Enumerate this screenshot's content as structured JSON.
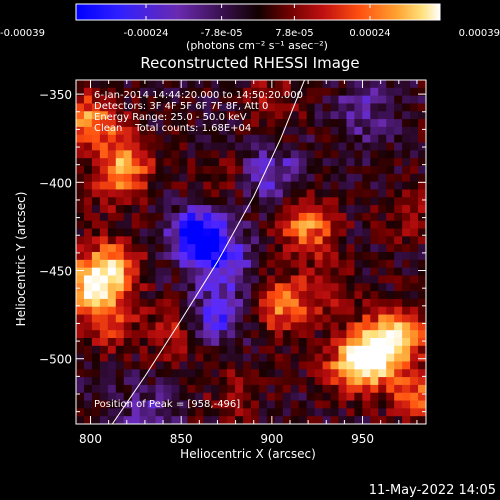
{
  "colorbar": {
    "ticks": [
      "-0.00039",
      "-0.00024",
      "-7.8e-05",
      "7.8e-05",
      "0.00024",
      "0.00039"
    ],
    "unit_label": "(photons cm⁻² s⁻¹ asec⁻²)"
  },
  "chart_data": {
    "type": "heatmap",
    "title": "Reconstructed RHESSI Image",
    "xlabel": "Heliocentric X (arcsec)",
    "ylabel": "Heliocentric Y (arcsec)",
    "xlim": [
      792,
      985
    ],
    "ylim": [
      -537,
      -342
    ],
    "x_ticks": [
      800,
      850,
      900,
      950
    ],
    "y_ticks": [
      -350,
      -400,
      -450,
      -500
    ],
    "color_range": [
      -0.00039,
      0.00039
    ],
    "colormap": [
      "#0000ff",
      "#5a2bff",
      "#6a2ab0",
      "#3a1050",
      "#1a0000",
      "#7a0000",
      "#c01010",
      "#ff5010",
      "#ffa030",
      "#ffe07a",
      "#ffffff"
    ],
    "annotations": [
      "6-Jan-2014 14:44:20.000 to 14:50:20.000",
      "Detectors: 3F 4F 5F 6F 7F 8F, Att 0",
      "Energy Range: 25.0 - 50.0 keV",
      "Clean    Total counts: 1.68E+04"
    ],
    "peak_label": "Position of Peak = [958,-496]",
    "peak": [
      958,
      -496
    ],
    "limb_curve": [
      [
        812,
        -537
      ],
      [
        830,
        -510
      ],
      [
        850,
        -478
      ],
      [
        870,
        -445
      ],
      [
        890,
        -408
      ],
      [
        905,
        -375
      ],
      [
        918,
        -342
      ]
    ],
    "hotspots": [
      {
        "x": 800,
        "y": -365,
        "v": 0.0003
      },
      {
        "x": 815,
        "y": -400,
        "v": 0.0002
      },
      {
        "x": 820,
        "y": -385,
        "v": 0.00022
      },
      {
        "x": 800,
        "y": -460,
        "v": 0.00036
      },
      {
        "x": 812,
        "y": -448,
        "v": 0.00032
      },
      {
        "x": 810,
        "y": -480,
        "v": 0.00018
      },
      {
        "x": 845,
        "y": -485,
        "v": 0.00016
      },
      {
        "x": 920,
        "y": -425,
        "v": 0.0003
      },
      {
        "x": 905,
        "y": -470,
        "v": 0.00028
      },
      {
        "x": 930,
        "y": -460,
        "v": 0.00015
      },
      {
        "x": 900,
        "y": -355,
        "v": 0.00014
      },
      {
        "x": 870,
        "y": -395,
        "v": 0.0001
      },
      {
        "x": 958,
        "y": -496,
        "v": 0.00039
      },
      {
        "x": 945,
        "y": -505,
        "v": 0.00034
      },
      {
        "x": 970,
        "y": -485,
        "v": 0.0003
      },
      {
        "x": 980,
        "y": -520,
        "v": 0.00024
      },
      {
        "x": 880,
        "y": -520,
        "v": 0.00012
      },
      {
        "x": 975,
        "y": -420,
        "v": 0.00012
      },
      {
        "x": 860,
        "y": -430,
        "v": -0.00036
      },
      {
        "x": 875,
        "y": -445,
        "v": -0.0002
      },
      {
        "x": 870,
        "y": -475,
        "v": -0.00022
      },
      {
        "x": 900,
        "y": -395,
        "v": -0.00018
      },
      {
        "x": 950,
        "y": -360,
        "v": -0.00014
      },
      {
        "x": 830,
        "y": -530,
        "v": -0.00012
      }
    ]
  },
  "footer": {
    "timestamp": "11-May-2022 14:05"
  }
}
